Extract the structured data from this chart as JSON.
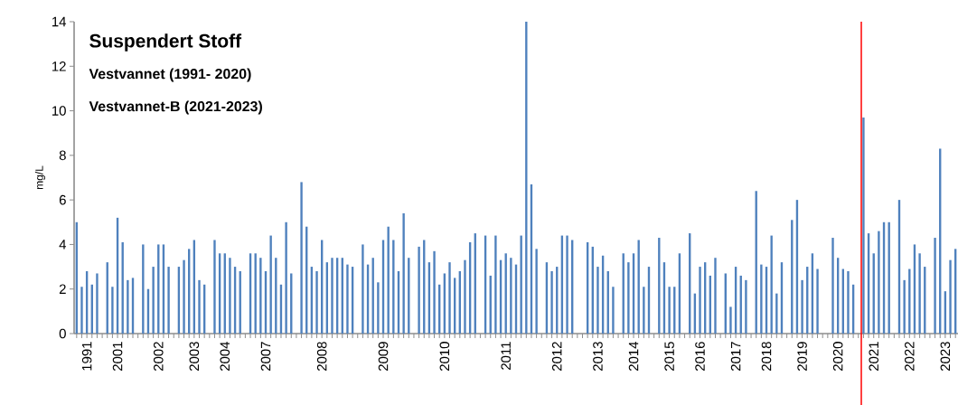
{
  "chart_data": {
    "type": "bar",
    "title": "Suspendert Stoff",
    "subtitle": "Vestvannet (1991- 2020)",
    "annotations": [
      "Vestvannet-B (2021-2023)"
    ],
    "ylabel": "mg/L",
    "color": "#4f81bd",
    "ylim": [
      0,
      14
    ],
    "yticks": [
      0,
      2,
      4,
      6,
      8,
      10,
      12,
      14
    ],
    "categories": [
      null,
      null,
      "1991",
      null,
      null,
      null,
      null,
      null,
      "2001",
      null,
      null,
      null,
      null,
      null,
      null,
      null,
      "2002",
      null,
      null,
      null,
      null,
      null,
      null,
      "2003",
      null,
      null,
      null,
      null,
      null,
      "2004",
      null,
      null,
      null,
      null,
      null,
      null,
      null,
      "2007",
      null,
      null,
      null,
      null,
      null,
      null,
      null,
      null,
      null,
      null,
      "2008",
      null,
      null,
      null,
      null,
      null,
      null,
      null,
      null,
      null,
      null,
      null,
      "2009",
      null,
      null,
      null,
      null,
      null,
      null,
      null,
      null,
      null,
      null,
      null,
      "2010",
      null,
      null,
      null,
      null,
      null,
      null,
      null,
      null,
      null,
      null,
      null,
      "2011",
      null,
      null,
      null,
      null,
      null,
      null,
      null,
      null,
      null,
      "2012",
      null,
      null,
      null,
      null,
      null,
      null,
      null,
      "2013",
      null,
      null,
      null,
      null,
      null,
      null,
      "2014",
      null,
      null,
      null,
      null,
      null,
      null,
      "2015",
      null,
      null,
      null,
      null,
      null,
      "2016",
      null,
      null,
      null,
      null,
      null,
      null,
      "2017",
      null,
      null,
      null,
      null,
      null,
      "2018",
      null,
      null,
      null,
      null,
      null,
      null,
      "2019",
      null,
      null,
      null,
      null,
      null,
      null,
      "2020",
      null,
      null,
      null,
      null,
      null,
      null,
      "2021",
      null,
      null,
      null,
      null,
      null,
      null,
      "2022",
      null,
      null,
      null,
      null,
      null,
      null,
      "2023",
      null,
      null
    ],
    "values": [
      5.0,
      2.1,
      2.8,
      2.2,
      2.7,
      null,
      3.2,
      2.1,
      5.2,
      4.1,
      2.4,
      2.5,
      null,
      4.0,
      2.0,
      3.0,
      4.0,
      4.0,
      3.0,
      null,
      3.0,
      3.3,
      3.8,
      4.2,
      2.4,
      2.2,
      null,
      4.2,
      3.6,
      3.6,
      3.4,
      3.0,
      2.8,
      null,
      3.6,
      3.6,
      3.4,
      2.8,
      4.4,
      3.4,
      2.2,
      5.0,
      2.7,
      null,
      6.8,
      4.8,
      3.0,
      2.8,
      4.2,
      3.2,
      3.4,
      3.4,
      3.4,
      3.1,
      3.0,
      null,
      4.0,
      3.1,
      3.4,
      2.3,
      4.2,
      4.8,
      4.2,
      2.8,
      5.4,
      3.4,
      null,
      3.9,
      4.2,
      3.2,
      3.7,
      2.2,
      2.7,
      3.2,
      2.5,
      2.8,
      3.3,
      4.1,
      4.5,
      null,
      4.4,
      2.6,
      4.4,
      3.3,
      3.6,
      3.4,
      3.1,
      4.4,
      14.0,
      6.7,
      3.8,
      null,
      3.2,
      2.8,
      3.0,
      4.4,
      4.4,
      4.2,
      null,
      null,
      4.1,
      3.9,
      3.0,
      3.5,
      2.8,
      2.1,
      null,
      3.6,
      3.2,
      3.6,
      4.2,
      2.1,
      3.0,
      null,
      4.3,
      3.2,
      2.1,
      2.1,
      3.6,
      null,
      4.5,
      1.8,
      3.0,
      3.2,
      2.6,
      3.4,
      null,
      2.7,
      1.2,
      3.0,
      2.6,
      2.4,
      null,
      6.4,
      3.1,
      3.0,
      4.4,
      1.8,
      3.2,
      null,
      5.1,
      6.0,
      2.4,
      3.0,
      3.6,
      2.9,
      null,
      null,
      4.3,
      3.4,
      2.9,
      2.8,
      2.2,
      null,
      9.7,
      4.5,
      3.6,
      4.6,
      5.0,
      5.0,
      null,
      6.0,
      2.4,
      2.9,
      4.0,
      3.6,
      3.0,
      null,
      4.3,
      8.3,
      1.9,
      3.3,
      3.8
    ]
  }
}
